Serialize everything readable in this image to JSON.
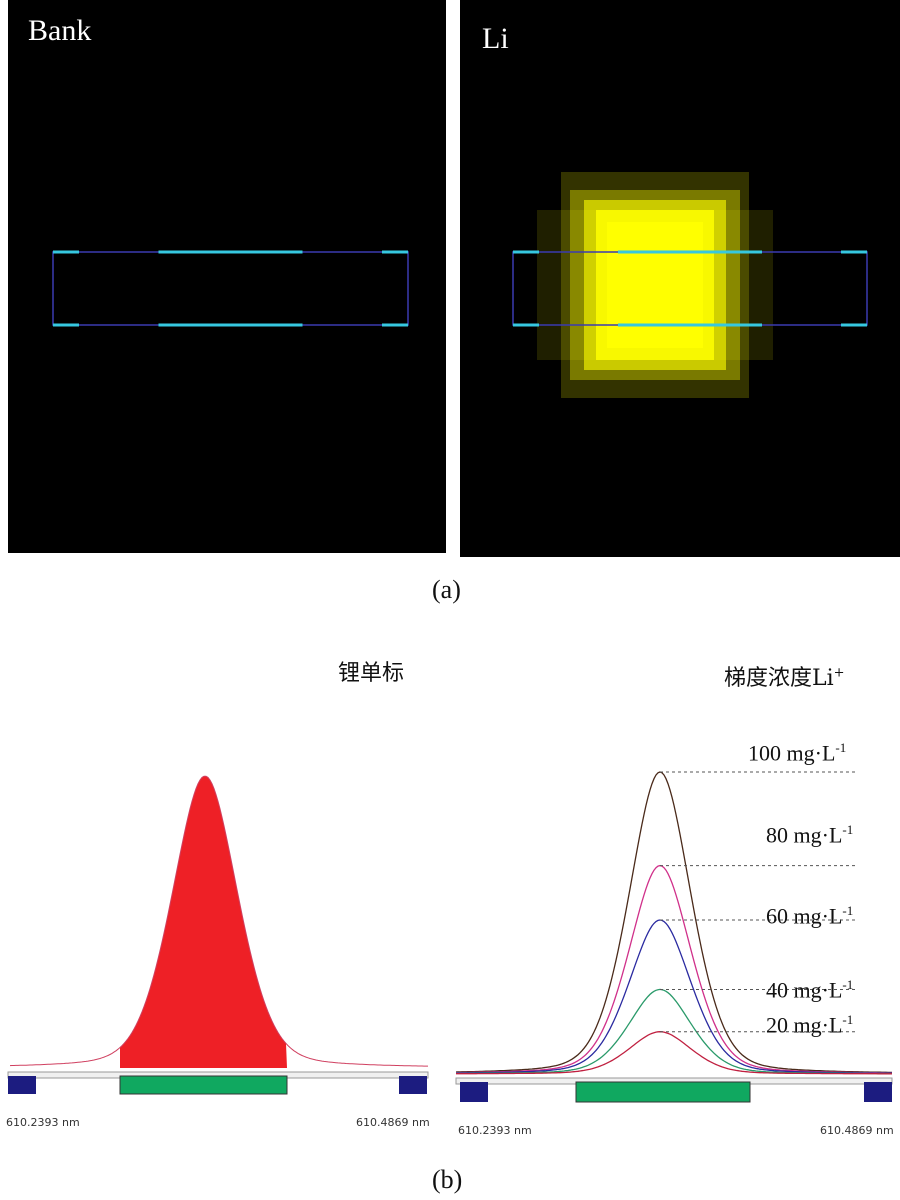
{
  "panel_a": {
    "left_label": "Bank",
    "right_label": "Li",
    "caption": "(a)",
    "colors": {
      "frame": "#3a3ab0",
      "marker": "#36c8e0",
      "glow": "#ffff00"
    }
  },
  "panel_b": {
    "left_title": "锂单标",
    "right_title_main": "梯度浓度Li",
    "right_title_sup": "+",
    "caption": "(b)",
    "left_axis": {
      "min_label": "610.2393 nm",
      "max_label": "610.4869 nm"
    },
    "right_axis": {
      "min_label": "610.2393 nm",
      "max_label": "610.4869 nm"
    },
    "colors": {
      "peak_fill": "#ee2026",
      "window_bar": "#10a860",
      "end_block": "#1c1c80"
    }
  },
  "chart_data": [
    {
      "type": "area",
      "title": "锂单标",
      "x_range_nm": [
        610.2393,
        610.4869
      ],
      "series": [
        {
          "peak_nm": 610.3563,
          "relative_height": 1.0
        }
      ]
    },
    {
      "type": "line",
      "title": "梯度浓度Li+",
      "x_range_nm": [
        610.2393,
        610.4869
      ],
      "units": "mg·L-1",
      "series": [
        {
          "name": "100 mg·L-1",
          "concentration": 100,
          "relative_height": 1.0,
          "color": "#4a2a1a"
        },
        {
          "name": "80 mg·L-1",
          "concentration": 80,
          "relative_height": 0.69,
          "color": "#d0308a"
        },
        {
          "name": "60 mg·L-1",
          "concentration": 60,
          "relative_height": 0.51,
          "color": "#2a2aa0"
        },
        {
          "name": "40 mg·L-1",
          "concentration": 40,
          "relative_height": 0.28,
          "color": "#2a9a6a"
        },
        {
          "name": "20 mg·L-1",
          "concentration": 20,
          "relative_height": 0.14,
          "color": "#c02040"
        }
      ],
      "labels": [
        {
          "main": "100 mg·L",
          "sup": "-1"
        },
        {
          "main": "80 mg·L",
          "sup": "-1"
        },
        {
          "main": "60 mg·L",
          "sup": "-1"
        },
        {
          "main": "40 mg·L",
          "sup": "-1"
        },
        {
          "main": "20 mg·L",
          "sup": "-1"
        }
      ]
    }
  ]
}
